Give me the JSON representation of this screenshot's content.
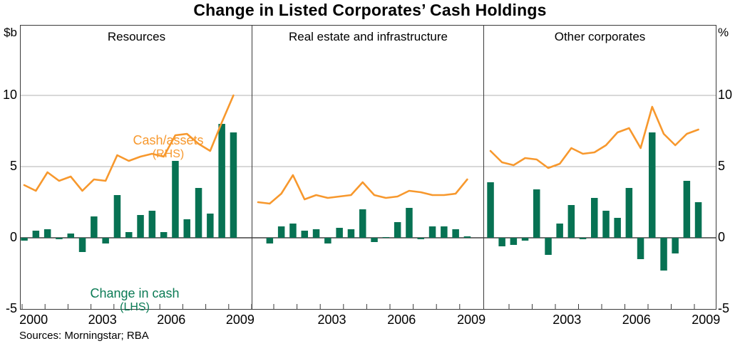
{
  "title": "Change in Listed Corporates’ Cash Holdings",
  "axes": {
    "left_unit": "$b",
    "right_unit": "%",
    "tick_values": [
      10,
      5,
      0,
      -5
    ],
    "tick_labels": [
      "10",
      "5",
      "0",
      "-5"
    ]
  },
  "annotations": {
    "line_label": "Cash/assets",
    "line_sub": "(RHS)",
    "bar_label": "Change in cash",
    "bar_sub": "(LHS)"
  },
  "source_note": "Sources: Morningstar; RBA",
  "colors": {
    "bar": "#077253",
    "line": "#F7982D",
    "grid": "#b0b0b0",
    "axis": "#3a3a3a",
    "zero_line": "#1a1a1a"
  },
  "chart_data": [
    {
      "type": "bar",
      "title": "Resources",
      "x": [
        "2000H1",
        "2000H2",
        "2001H1",
        "2001H2",
        "2002H1",
        "2002H2",
        "2003H1",
        "2003H2",
        "2004H1",
        "2004H2",
        "2005H1",
        "2005H2",
        "2006H1",
        "2006H2",
        "2007H1",
        "2007H2",
        "2008H1",
        "2008H2",
        "2009H1"
      ],
      "series": [
        {
          "name": "Change in cash (LHS)",
          "type": "bar",
          "unit": "$b",
          "values": [
            -0.2,
            0.5,
            0.6,
            -0.1,
            0.3,
            -1.0,
            1.5,
            -0.4,
            3.0,
            0.4,
            1.6,
            1.9,
            0.4,
            5.4,
            1.3,
            3.5,
            1.7,
            8.0,
            7.4
          ]
        },
        {
          "name": "Cash/assets (RHS)",
          "type": "line",
          "unit": "%",
          "values": [
            3.7,
            3.3,
            4.6,
            4.0,
            4.3,
            3.3,
            4.1,
            4.0,
            5.8,
            5.4,
            5.7,
            5.9,
            5.7,
            7.2,
            7.3,
            6.6,
            6.1,
            8.1,
            10.0
          ]
        }
      ],
      "x_tick_labels": [
        "2000",
        "2003",
        "2006",
        "2009"
      ],
      "ylim": [
        -5,
        14.9
      ],
      "y_ticks": [
        -5,
        0,
        5,
        10
      ],
      "gridlines": [
        5,
        10
      ],
      "grid": true,
      "legend_position": "none"
    },
    {
      "type": "bar",
      "title": "Real estate and infrastructure",
      "x": [
        "2000H1",
        "2000H2",
        "2001H1",
        "2001H2",
        "2002H1",
        "2002H2",
        "2003H1",
        "2003H2",
        "2004H1",
        "2004H2",
        "2005H1",
        "2005H2",
        "2006H1",
        "2006H2",
        "2007H1",
        "2007H2",
        "2008H1",
        "2008H2",
        "2009H1"
      ],
      "series": [
        {
          "name": "Change in cash (LHS)",
          "type": "bar",
          "unit": "$b",
          "values": [
            null,
            -0.4,
            0.8,
            1.0,
            0.5,
            0.6,
            -0.4,
            0.7,
            0.6,
            2.0,
            -0.3,
            0.05,
            1.1,
            2.1,
            -0.1,
            0.8,
            0.8,
            0.6,
            0.1
          ]
        },
        {
          "name": "Cash/assets (RHS)",
          "type": "line",
          "unit": "%",
          "values": [
            2.5,
            2.4,
            3.1,
            4.4,
            2.7,
            3.0,
            2.8,
            2.9,
            3.0,
            3.9,
            3.0,
            2.8,
            2.9,
            3.3,
            3.2,
            3.0,
            3.0,
            3.1,
            4.1
          ]
        }
      ],
      "x_tick_labels": [
        "2003",
        "2006",
        "2009"
      ],
      "ylim": [
        -5,
        14.9
      ],
      "y_ticks": [
        -5,
        0,
        5,
        10
      ],
      "gridlines": [
        5,
        10
      ],
      "grid": true,
      "legend_position": "none"
    },
    {
      "type": "bar",
      "title": "Other corporates",
      "x": [
        "2000H1",
        "2000H2",
        "2001H1",
        "2001H2",
        "2002H1",
        "2002H2",
        "2003H1",
        "2003H2",
        "2004H1",
        "2004H2",
        "2005H1",
        "2005H2",
        "2006H1",
        "2006H2",
        "2007H1",
        "2007H2",
        "2008H1",
        "2008H2",
        "2009H1"
      ],
      "series": [
        {
          "name": "Change in cash (LHS)",
          "type": "bar",
          "unit": "$b",
          "values": [
            3.9,
            -0.6,
            -0.5,
            -0.2,
            3.4,
            -1.2,
            1.0,
            2.3,
            -0.1,
            2.8,
            1.9,
            1.4,
            3.5,
            -1.5,
            7.4,
            -2.3,
            -1.1,
            4.0,
            2.5
          ]
        },
        {
          "name": "Cash/assets (RHS)",
          "type": "line",
          "unit": "%",
          "values": [
            6.1,
            5.3,
            5.1,
            5.6,
            5.5,
            4.9,
            5.2,
            6.3,
            5.9,
            6.0,
            6.5,
            7.4,
            7.7,
            6.3,
            9.2,
            7.3,
            6.5,
            7.3,
            7.6
          ]
        }
      ],
      "x_tick_labels": [
        "2003",
        "2006",
        "2009"
      ],
      "ylim": [
        -5,
        14.9
      ],
      "y_ticks": [
        -5,
        0,
        5,
        10
      ],
      "gridlines": [
        5,
        10
      ],
      "grid": true,
      "legend_position": "none"
    }
  ]
}
